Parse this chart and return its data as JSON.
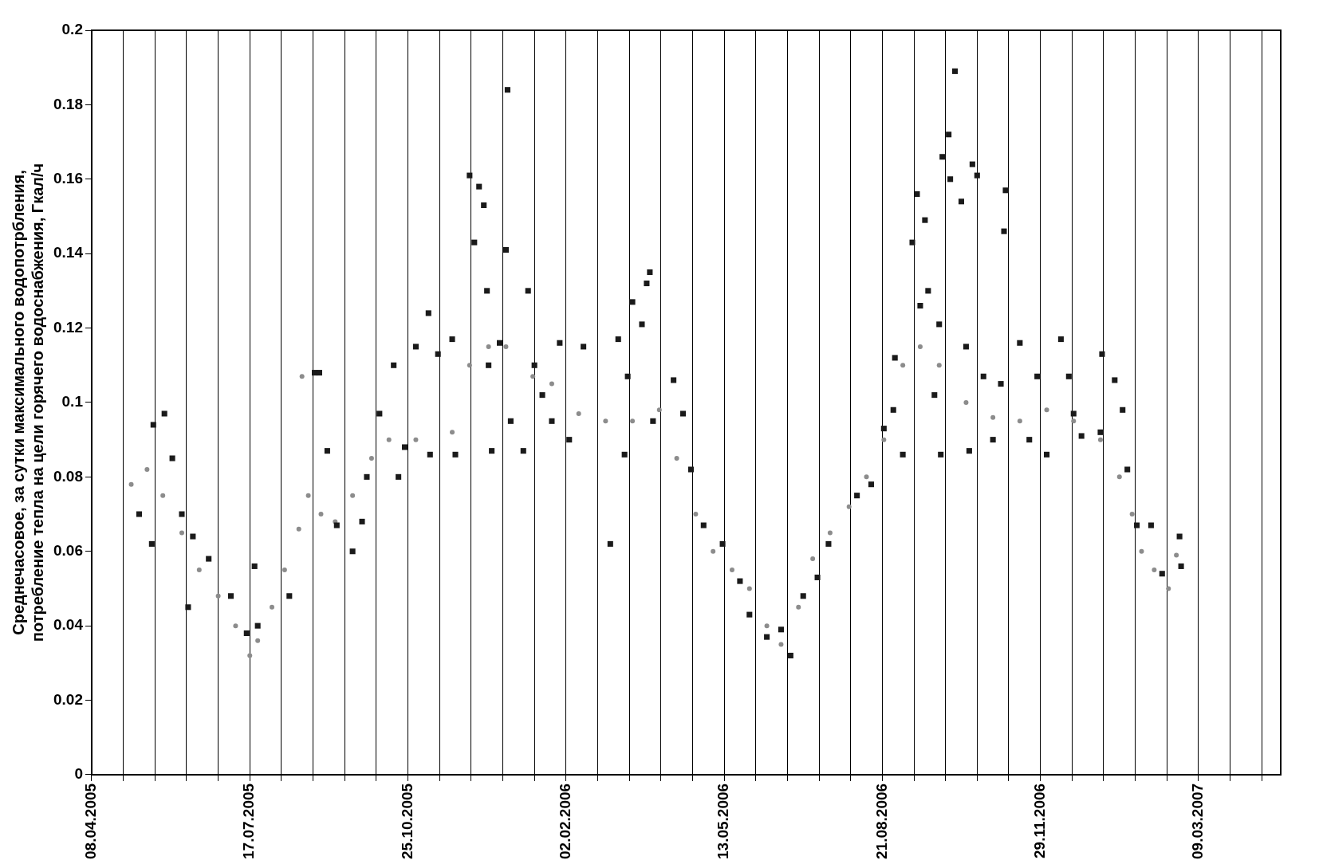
{
  "chart_data": {
    "type": "scatter",
    "ylabel": "Среднечасовое, за сутки максимального водопотрбления,\nпотребление тепла на цели горячего водоснабжения, Гкал/ч",
    "xlim": [
      "2005-04-08",
      "2007-04-30"
    ],
    "xticks": [
      {
        "value": "2005-04-08",
        "label": "08.04.2005"
      },
      {
        "value": "2005-04-28",
        "label": null
      },
      {
        "value": "2005-05-18",
        "label": null
      },
      {
        "value": "2005-06-07",
        "label": null
      },
      {
        "value": "2005-06-27",
        "label": null
      },
      {
        "value": "2005-07-17",
        "label": "17.07.2005"
      },
      {
        "value": "2005-08-06",
        "label": null
      },
      {
        "value": "2005-08-26",
        "label": null
      },
      {
        "value": "2005-09-15",
        "label": null
      },
      {
        "value": "2005-10-05",
        "label": null
      },
      {
        "value": "2005-10-25",
        "label": "25.10.2005"
      },
      {
        "value": "2005-11-14",
        "label": null
      },
      {
        "value": "2005-12-04",
        "label": null
      },
      {
        "value": "2005-12-24",
        "label": null
      },
      {
        "value": "2006-01-13",
        "label": null
      },
      {
        "value": "2006-02-02",
        "label": "02.02.2006"
      },
      {
        "value": "2006-02-22",
        "label": null
      },
      {
        "value": "2006-03-14",
        "label": null
      },
      {
        "value": "2006-04-03",
        "label": null
      },
      {
        "value": "2006-04-23",
        "label": null
      },
      {
        "value": "2006-05-13",
        "label": "13.05.2006"
      },
      {
        "value": "2006-06-02",
        "label": null
      },
      {
        "value": "2006-06-22",
        "label": null
      },
      {
        "value": "2006-07-12",
        "label": null
      },
      {
        "value": "2006-08-01",
        "label": null
      },
      {
        "value": "2006-08-21",
        "label": "21.08.2006"
      },
      {
        "value": "2006-09-10",
        "label": null
      },
      {
        "value": "2006-09-30",
        "label": null
      },
      {
        "value": "2006-10-20",
        "label": null
      },
      {
        "value": "2006-11-09",
        "label": null
      },
      {
        "value": "2006-11-29",
        "label": "29.11.2006"
      },
      {
        "value": "2006-12-19",
        "label": null
      },
      {
        "value": "2007-01-08",
        "label": null
      },
      {
        "value": "2007-01-28",
        "label": null
      },
      {
        "value": "2007-02-17",
        "label": null
      },
      {
        "value": "2007-03-09",
        "label": "09.03.2007"
      },
      {
        "value": "2007-03-29",
        "label": null
      },
      {
        "value": "2007-04-18",
        "label": null
      }
    ],
    "ylim": [
      0,
      0.2
    ],
    "yticks": [
      0,
      0.02,
      0.04,
      0.06,
      0.08,
      0.1,
      0.12,
      0.14,
      0.16,
      0.18,
      0.2
    ],
    "grid": "x",
    "legend": false,
    "series": [
      {
        "color": "#8c8c8c",
        "marker": "circle",
        "x": [
          "2005-05-03",
          "2005-05-13",
          "2005-05-23",
          "2005-06-04",
          "2005-06-15",
          "2005-06-27",
          "2005-07-08",
          "2005-07-17",
          "2005-07-22",
          "2005-07-31",
          "2005-08-08",
          "2005-08-17",
          "2005-08-19",
          "2005-08-23",
          "2005-08-31",
          "2005-09-09",
          "2005-09-20",
          "2005-10-02",
          "2005-10-13",
          "2005-10-30",
          "2005-11-22",
          "2005-12-03",
          "2005-12-15",
          "2005-12-26",
          "2006-01-12",
          "2006-01-24",
          "2006-02-10",
          "2006-02-27",
          "2006-03-16",
          "2006-04-02",
          "2006-04-13",
          "2006-04-25",
          "2006-05-06",
          "2006-05-18",
          "2006-05-29",
          "2006-06-09",
          "2006-06-18",
          "2006-06-29",
          "2006-07-08",
          "2006-07-19",
          "2006-07-31",
          "2006-08-11",
          "2006-08-22",
          "2006-09-03",
          "2006-09-14",
          "2006-09-26",
          "2006-10-13",
          "2006-10-30",
          "2006-11-16",
          "2006-12-03",
          "2006-12-20",
          "2007-01-06",
          "2007-01-18",
          "2007-01-26",
          "2007-02-01",
          "2007-02-09",
          "2007-02-18",
          "2007-02-23"
        ],
        "values": [
          0.078,
          0.082,
          0.075,
          0.065,
          0.055,
          0.048,
          0.04,
          0.032,
          0.036,
          0.045,
          0.055,
          0.066,
          0.107,
          0.075,
          0.07,
          0.068,
          0.075,
          0.085,
          0.09,
          0.09,
          0.092,
          0.11,
          0.115,
          0.115,
          0.107,
          0.105,
          0.097,
          0.095,
          0.095,
          0.098,
          0.085,
          0.07,
          0.06,
          0.055,
          0.05,
          0.04,
          0.035,
          0.045,
          0.058,
          0.065,
          0.072,
          0.08,
          0.09,
          0.11,
          0.115,
          0.11,
          0.1,
          0.096,
          0.095,
          0.098,
          0.095,
          0.09,
          0.08,
          0.07,
          0.06,
          0.055,
          0.05,
          0.059
        ]
      },
      {
        "color": "#1a1a1a",
        "marker": "square",
        "x": [
          "2005-05-08",
          "2005-05-17",
          "2005-05-24",
          "2005-05-16",
          "2005-05-29",
          "2005-06-04",
          "2005-06-08",
          "2005-06-11",
          "2005-06-21",
          "2005-07-05",
          "2005-07-20",
          "2005-07-15",
          "2005-07-22",
          "2005-08-11",
          "2005-08-27",
          "2005-08-30",
          "2005-09-04",
          "2005-09-10",
          "2005-09-20",
          "2005-09-26",
          "2005-09-29",
          "2005-10-07",
          "2005-10-16",
          "2005-10-19",
          "2005-10-23",
          "2005-10-30",
          "2005-11-07",
          "2005-11-08",
          "2005-11-13",
          "2005-11-22",
          "2005-11-24",
          "2005-12-03",
          "2005-12-06",
          "2005-12-09",
          "2005-12-12",
          "2005-12-14",
          "2005-12-15",
          "2005-12-17",
          "2005-12-26",
          "2005-12-22",
          "2005-12-27",
          "2005-12-29",
          "2006-01-09",
          "2006-01-06",
          "2006-01-13",
          "2006-01-18",
          "2006-01-24",
          "2006-01-29",
          "2006-02-04",
          "2006-02-13",
          "2006-03-02",
          "2006-03-07",
          "2006-03-13",
          "2006-03-16",
          "2006-03-22",
          "2006-03-25",
          "2006-03-27",
          "2006-03-29",
          "2006-03-11",
          "2006-04-11",
          "2006-04-17",
          "2006-04-22",
          "2006-04-30",
          "2006-05-12",
          "2006-05-23",
          "2006-05-29",
          "2006-06-09",
          "2006-06-18",
          "2006-06-24",
          "2006-07-02",
          "2006-07-11",
          "2006-07-18",
          "2006-08-05",
          "2006-08-14",
          "2006-08-22",
          "2006-08-28",
          "2006-08-29",
          "2006-09-03",
          "2006-09-09",
          "2006-09-12",
          "2006-09-14",
          "2006-09-17",
          "2006-09-19",
          "2006-09-23",
          "2006-09-26",
          "2006-09-27",
          "2006-09-28",
          "2006-10-02",
          "2006-10-03",
          "2006-10-06",
          "2006-10-10",
          "2006-10-13",
          "2006-10-15",
          "2006-10-17",
          "2006-10-20",
          "2006-10-24",
          "2006-10-30",
          "2006-11-06",
          "2006-11-07",
          "2006-11-04",
          "2006-11-16",
          "2006-11-22",
          "2006-11-27",
          "2006-12-03",
          "2006-12-12",
          "2006-12-17",
          "2006-12-20",
          "2006-12-25",
          "2007-01-07",
          "2007-01-06",
          "2007-01-15",
          "2007-01-20",
          "2007-01-23",
          "2007-01-29",
          "2007-02-07",
          "2007-02-14",
          "2007-02-25",
          "2007-02-26"
        ],
        "values": [
          0.07,
          0.094,
          0.097,
          0.062,
          0.085,
          0.07,
          0.045,
          0.064,
          0.058,
          0.048,
          0.056,
          0.038,
          0.04,
          0.048,
          0.108,
          0.108,
          0.087,
          0.067,
          0.06,
          0.068,
          0.08,
          0.097,
          0.11,
          0.08,
          0.088,
          0.115,
          0.124,
          0.086,
          0.113,
          0.117,
          0.086,
          0.161,
          0.143,
          0.158,
          0.153,
          0.13,
          0.11,
          0.087,
          0.141,
          0.116,
          0.184,
          0.095,
          0.13,
          0.087,
          0.11,
          0.102,
          0.095,
          0.116,
          0.09,
          0.115,
          0.062,
          0.117,
          0.107,
          0.127,
          0.121,
          0.132,
          0.135,
          0.095,
          0.086,
          0.106,
          0.097,
          0.082,
          0.067,
          0.062,
          0.052,
          0.043,
          0.037,
          0.039,
          0.032,
          0.048,
          0.053,
          0.062,
          0.075,
          0.078,
          0.093,
          0.098,
          0.112,
          0.086,
          0.143,
          0.156,
          0.126,
          0.149,
          0.13,
          0.102,
          0.121,
          0.086,
          0.166,
          0.172,
          0.16,
          0.189,
          0.154,
          0.115,
          0.087,
          0.164,
          0.161,
          0.107,
          0.09,
          0.146,
          0.157,
          0.105,
          0.116,
          0.09,
          0.107,
          0.086,
          0.117,
          0.107,
          0.097,
          0.091,
          0.113,
          0.092,
          0.106,
          0.098,
          0.082,
          0.067,
          0.067,
          0.054,
          0.064,
          0.056
        ]
      }
    ]
  }
}
